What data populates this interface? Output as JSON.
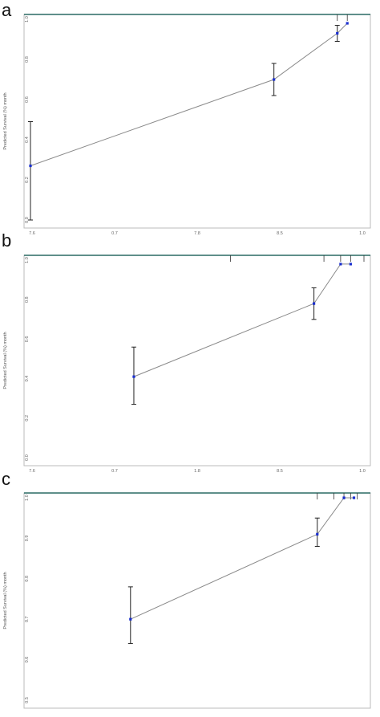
{
  "figure": {
    "panels": [
      "a",
      "b",
      "c"
    ]
  },
  "chart_data": [
    {
      "type": "line",
      "panel": "a",
      "ylabel": "Predicted Survival (%) month",
      "x_ticks": [
        "7.6",
        "0.7",
        "7.8",
        "8.5",
        "1.0"
      ],
      "y_ticks": [
        "1.0",
        "0.8",
        "0.6",
        "0.4",
        "0.2",
        "0.0"
      ],
      "xlim": [
        0.0,
        1.0
      ],
      "ylim": [
        0.0,
        1.0
      ],
      "series": [
        {
          "x": [
            0.0,
            0.73,
            0.92,
            0.95
          ],
          "y": [
            0.27,
            0.7,
            0.93,
            0.98
          ],
          "err_low": [
            0.0,
            0.62,
            0.89,
            0.98
          ],
          "err_high": [
            0.49,
            0.78,
            0.97,
            0.98
          ]
        }
      ],
      "rug": [
        0.92,
        0.95
      ],
      "colors": {
        "line": "#8a8a8a",
        "point": "#1a2fd0",
        "error": "#222222",
        "frame": "#bbbbbb",
        "top_border": "#2a6a64"
      }
    },
    {
      "type": "line",
      "panel": "b",
      "ylabel": "Predicted Survival (%) month",
      "x_ticks": [
        "7.6",
        "0.7",
        "1.8",
        "8.5",
        "1.0"
      ],
      "y_ticks": [
        "1.0",
        "0.8",
        "0.6",
        "0.4",
        "0.2",
        "0.0"
      ],
      "xlim": [
        0.0,
        1.0
      ],
      "ylim": [
        0.0,
        1.0
      ],
      "series": [
        {
          "x": [
            0.31,
            0.85,
            0.93,
            0.96
          ],
          "y": [
            0.41,
            0.78,
            0.98,
            0.98
          ],
          "err_low": [
            0.27,
            0.7,
            0.98,
            0.98
          ],
          "err_high": [
            0.56,
            0.86,
            0.98,
            0.98
          ]
        }
      ],
      "rug": [
        0.6,
        0.88,
        0.93,
        0.96,
        1.0
      ],
      "colors": {
        "line": "#8a8a8a",
        "point": "#1a2fd0",
        "error": "#222222",
        "frame": "#bbbbbb",
        "top_border": "#2a6a64"
      }
    },
    {
      "type": "line",
      "panel": "c",
      "ylabel": "Predicted Survival (%) month",
      "x_ticks": [
        "",
        "",
        "",
        "",
        ""
      ],
      "y_ticks": [
        "1.0",
        "0.9",
        "0.8",
        "0.7",
        "0.6",
        "0.5"
      ],
      "xlim": [
        0.0,
        1.0
      ],
      "ylim": [
        0.5,
        1.0
      ],
      "series": [
        {
          "x": [
            0.3,
            0.86,
            0.94,
            0.97
          ],
          "y": [
            0.7,
            0.91,
            1.0,
            1.0
          ],
          "err_low": [
            0.64,
            0.88,
            1.0,
            1.0
          ],
          "err_high": [
            0.78,
            0.95,
            1.0,
            1.0
          ]
        }
      ],
      "rug": [
        0.86,
        0.91,
        0.94,
        0.96,
        0.98
      ],
      "colors": {
        "line": "#8a8a8a",
        "point": "#1a2fd0",
        "error": "#222222",
        "frame": "#bbbbbb",
        "top_border": "#2a6a64"
      }
    }
  ]
}
